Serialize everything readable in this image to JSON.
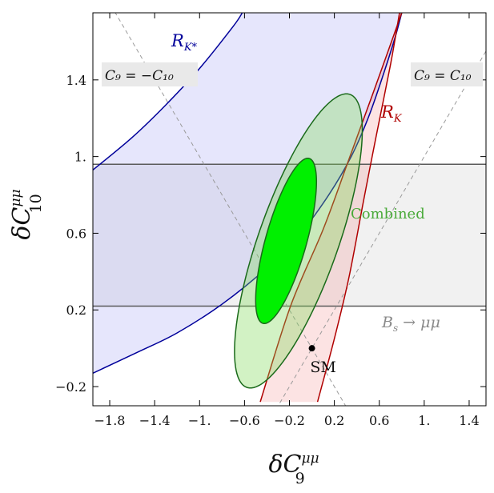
{
  "chart_data": {
    "type": "contour",
    "xlabel": "δC",
    "xlabel_sup": "μμ",
    "xlabel_sub": "9",
    "ylabel": "δC",
    "ylabel_sup": "μμ",
    "ylabel_sub": "10",
    "xlim": [
      -1.95,
      1.55
    ],
    "ylim": [
      -0.3,
      1.75
    ],
    "x_ticks": [
      -1.8,
      -1.4,
      -1.0,
      -0.6,
      -0.2,
      0.2,
      0.6,
      1.0,
      1.4
    ],
    "x_tick_labels": [
      "−1.8",
      "−1.4",
      "−1.",
      "−0.6",
      "−0.2",
      "0.2",
      "0.6",
      "1.",
      "1.4"
    ],
    "y_ticks": [
      -0.2,
      0.2,
      0.6,
      1.0,
      1.4
    ],
    "y_tick_labels": [
      "−0.2",
      "0.2",
      "0.6",
      "1.",
      "1.4"
    ],
    "grid": false,
    "colors": {
      "rk_fill": "#fbe0e0",
      "rk_line": "#b00000",
      "rkstar_fill": "#e3e3fb",
      "rkstar_line": "#00009a",
      "overlap_fill": "#e2cbe9",
      "bs_fill": "#f1f1f1",
      "bs_line": "#5a5a5a",
      "combined_outer_fill": "#cff5b5",
      "combined_inner_fill": "#00f000",
      "combined_line": "#1a6a1a",
      "diagonal_line": "#9a9a9a"
    },
    "bs_band": {
      "label_main": "B",
      "label_sub": "s",
      "label_rest": " → μμ",
      "y_min": 0.22,
      "y_max": 0.96
    },
    "rk_band": {
      "label": "R",
      "label_sub": "K",
      "left_edge": [
        [
          -0.46,
          -0.28
        ],
        [
          -0.19,
          0.22
        ],
        [
          0.1,
          0.62
        ],
        [
          0.32,
          0.97
        ],
        [
          0.55,
          1.34
        ],
        [
          0.8,
          1.75
        ]
      ],
      "right_edge": [
        [
          0.05,
          -0.28
        ],
        [
          0.2,
          0.05
        ],
        [
          0.33,
          0.37
        ],
        [
          0.46,
          0.77
        ],
        [
          0.57,
          1.1
        ],
        [
          0.7,
          1.48
        ],
        [
          0.78,
          1.75
        ]
      ]
    },
    "rkstar_band": {
      "label": "R",
      "label_sub": "K*",
      "upper_edge": [
        [
          -1.95,
          0.93
        ],
        [
          -1.6,
          1.1
        ],
        [
          -1.3,
          1.27
        ],
        [
          -1.0,
          1.46
        ],
        [
          -0.7,
          1.68
        ],
        [
          -0.62,
          1.75
        ]
      ],
      "lower_edge": [
        [
          -1.95,
          -0.13
        ],
        [
          -1.55,
          -0.02
        ],
        [
          -1.2,
          0.08
        ],
        [
          -0.8,
          0.23
        ],
        [
          -0.4,
          0.42
        ],
        [
          -0.1,
          0.6
        ],
        [
          0.15,
          0.8
        ],
        [
          0.35,
          1.0
        ],
        [
          0.5,
          1.2
        ],
        [
          0.62,
          1.4
        ],
        [
          0.74,
          1.62
        ],
        [
          0.8,
          1.75
        ]
      ]
    },
    "combined": {
      "label": "Combined",
      "outer": {
        "cx": -0.12,
        "cy": 0.56,
        "rx": 0.9,
        "ry": 0.32,
        "angle_deg": 56
      },
      "inner": {
        "cx": -0.23,
        "cy": 0.56,
        "rx": 0.48,
        "ry": 0.17,
        "angle_deg": 62
      }
    },
    "diagonals": [
      {
        "label": "C₉ = −C₁₀",
        "p1": [
          -1.95,
          1.95
        ],
        "p2": [
          0.35,
          -0.35
        ]
      },
      {
        "label": "C₉ = C₁₀",
        "p1": [
          -0.35,
          -0.35
        ],
        "p2": [
          1.75,
          1.75
        ]
      }
    ],
    "sm_point": {
      "label": "SM",
      "x": 0.0,
      "y": 0.0
    }
  }
}
